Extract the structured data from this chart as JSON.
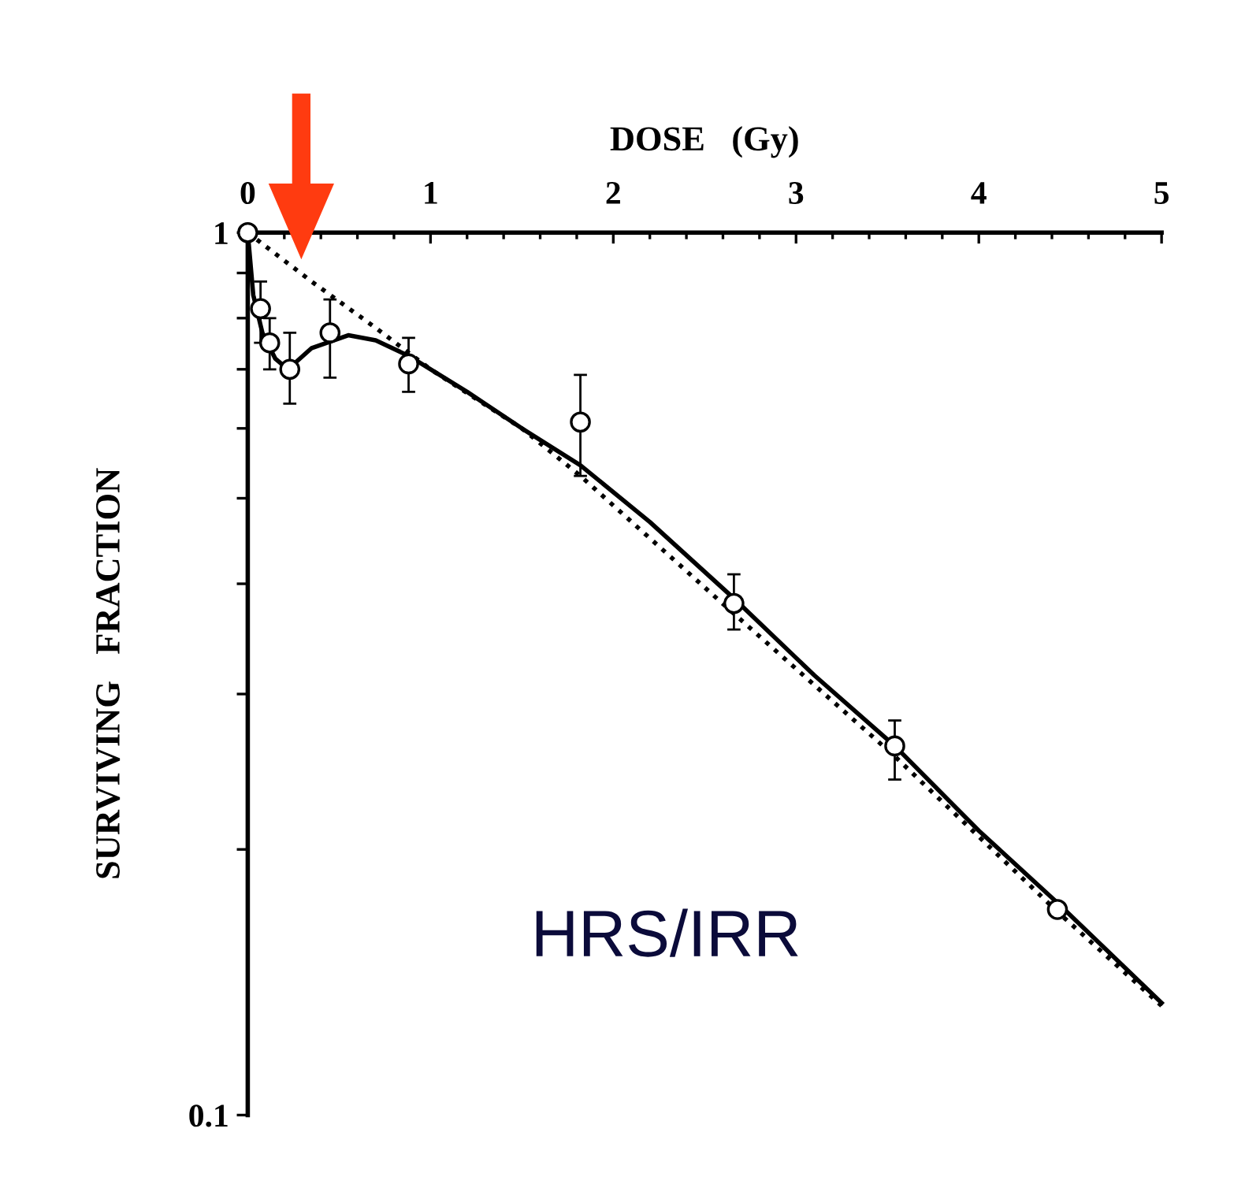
{
  "chart_data": {
    "type": "scatter",
    "xlabel": "DOSE   (Gy)",
    "ylabel": "SURVIVING   FRACTION",
    "log": "y",
    "xlim": [
      0,
      5
    ],
    "ylim": [
      0.1,
      1
    ],
    "xticks": [
      0,
      {
        "value": 0.2,
        "label": null
      },
      {
        "value": 0.4,
        "label": null
      },
      {
        "value": 0.6,
        "label": null
      },
      {
        "value": 0.8,
        "label": null
      },
      1,
      {
        "value": 1.2,
        "label": null
      },
      {
        "value": 1.4,
        "label": null
      },
      {
        "value": 1.6,
        "label": null
      },
      {
        "value": 1.8,
        "label": null
      },
      2,
      {
        "value": 2.2,
        "label": null
      },
      {
        "value": 2.4,
        "label": null
      },
      {
        "value": 2.6,
        "label": null
      },
      {
        "value": 2.8,
        "label": null
      },
      3,
      {
        "value": 3.2,
        "label": null
      },
      {
        "value": 3.4,
        "label": null
      },
      {
        "value": 3.6,
        "label": null
      },
      {
        "value": 3.8,
        "label": null
      },
      4,
      {
        "value": 4.2,
        "label": null
      },
      {
        "value": 4.4,
        "label": null
      },
      {
        "value": 4.6,
        "label": null
      },
      {
        "value": 4.8,
        "label": null
      },
      5
    ],
    "yticks": [
      {
        "value": 0.1,
        "label": "0.1"
      },
      {
        "value": 0.2,
        "label": null
      },
      {
        "value": 0.3,
        "label": null
      },
      {
        "value": 0.4,
        "label": null
      },
      {
        "value": 0.5,
        "label": null
      },
      {
        "value": 0.6,
        "label": null
      },
      {
        "value": 0.7,
        "label": null
      },
      {
        "value": 0.8,
        "label": null
      },
      {
        "value": 0.9,
        "label": null
      },
      1
    ],
    "grid": false,
    "legend": false,
    "annotations": [
      "HRS/IRR"
    ],
    "series": [
      {
        "color": "#000000",
        "marker": "circle",
        "x": [
          0,
          0.07,
          0.12,
          0.23,
          0.45,
          0.88,
          1.82,
          2.66,
          3.54,
          4.43
        ],
        "values": [
          1,
          0.82,
          0.75,
          0.7,
          0.77,
          0.71,
          0.61,
          0.38,
          0.262,
          0.171
        ],
        "errors": [
          null,
          [
            0.75,
            0.88
          ],
          [
            0.7,
            0.8
          ],
          [
            0.64,
            0.77
          ],
          [
            0.685,
            0.84
          ],
          [
            0.66,
            0.76
          ],
          [
            0.53,
            0.69
          ],
          [
            0.355,
            0.41
          ],
          [
            0.24,
            0.28
          ],
          null
        ]
      },
      {
        "type": "line",
        "color": "#000000",
        "line_style": "solid",
        "x": [
          0,
          0.03,
          0.08,
          0.15,
          0.22,
          0.35,
          0.55,
          0.7,
          0.88,
          1.2,
          1.5,
          1.82,
          2.2,
          2.66,
          3.1,
          3.54,
          4.0,
          4.43,
          5.0
        ],
        "values": [
          1,
          0.85,
          0.77,
          0.72,
          0.7,
          0.74,
          0.765,
          0.755,
          0.725,
          0.66,
          0.6,
          0.545,
          0.47,
          0.385,
          0.315,
          0.262,
          0.21,
          0.174,
          0.134
        ]
      },
      {
        "type": "line",
        "color": "#000000",
        "line_style": "dotted",
        "x": [
          0,
          0.35,
          0.7,
          1.0,
          1.5,
          1.82,
          2.66,
          3.54,
          4.43,
          5.0
        ],
        "values": [
          1,
          0.88,
          0.78,
          0.7,
          0.6,
          0.53,
          0.37,
          0.255,
          0.17,
          0.133
        ]
      }
    ]
  }
}
